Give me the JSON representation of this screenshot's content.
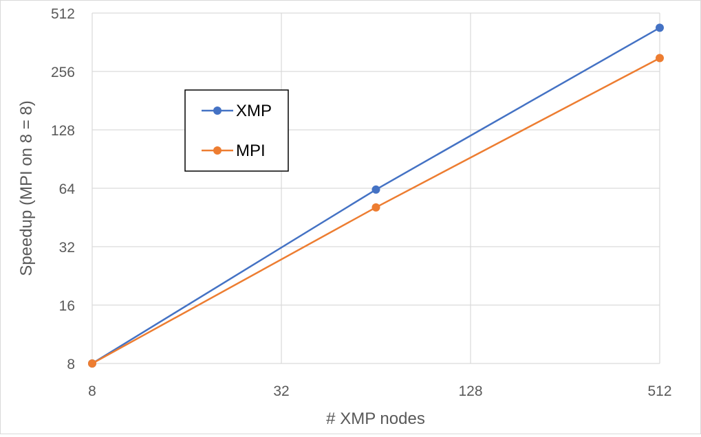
{
  "chart_data": {
    "type": "line",
    "title": "",
    "xlabel": "# XMP nodes",
    "ylabel": "Speedup (MPI on 8 = 8)",
    "xscale": "log2",
    "yscale": "log2",
    "xlim": [
      8,
      512
    ],
    "ylim": [
      8,
      512
    ],
    "xticks": [
      "8",
      "32",
      "128",
      "512"
    ],
    "yticks": [
      "8",
      "16",
      "32",
      "64",
      "128",
      "256",
      "512"
    ],
    "grid": true,
    "legend_position": "upper-left",
    "series": [
      {
        "name": "XMP",
        "color": "#4472C4",
        "x": [
          8,
          64,
          512
        ],
        "y": [
          8,
          63,
          430
        ]
      },
      {
        "name": "MPI",
        "color": "#ED7D31",
        "x": [
          8,
          64,
          512
        ],
        "y": [
          8,
          51,
          300
        ]
      }
    ]
  }
}
